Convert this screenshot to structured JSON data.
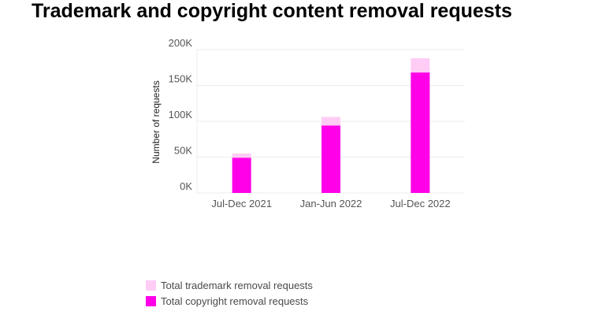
{
  "chart_data": {
    "type": "bar",
    "stacked": "overlay",
    "title": "Trademark and copyright content removal requests",
    "xlabel": "",
    "ylabel": "Number of requests",
    "categories": [
      "Jul-Dec 2021",
      "Jan-Jun 2022",
      "Jul-Dec 2022"
    ],
    "ylim": [
      0,
      200000
    ],
    "yticks": [
      0,
      50000,
      100000,
      150000,
      200000
    ],
    "ytick_labels": [
      "0K",
      "50K",
      "100K",
      "150K",
      "200K"
    ],
    "grid": true,
    "legend_position": "bottom-left",
    "series": [
      {
        "name": "Total trademark removal requests",
        "color": "#ffccf5",
        "values": [
          55000,
          106000,
          188000
        ]
      },
      {
        "name": "Total copyright removal requests",
        "color": "#ff00e8",
        "values": [
          49000,
          94000,
          168000
        ]
      }
    ]
  }
}
